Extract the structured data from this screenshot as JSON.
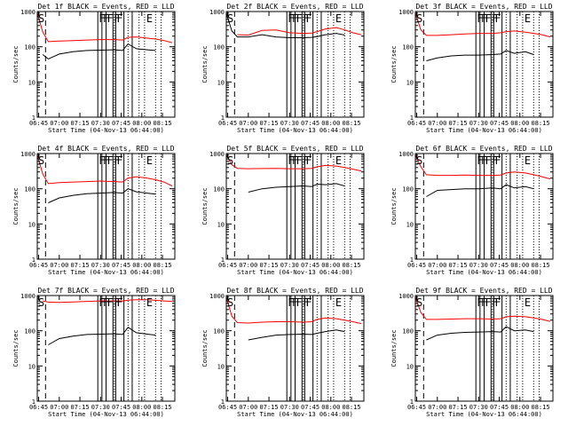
{
  "figure": {
    "panels": [
      {
        "title": "Det 1f BLACK = Events, RED = LLD",
        "start_marker": "S",
        "end_marker": "E",
        "flags": [
          "F",
          "F",
          "F",
          "F",
          "F"
        ],
        "xlabel": "Start Time (04-Nov-13 06:44:00)",
        "ylabel": "Counts/sec",
        "x_tick_labels": [
          "06:45",
          "07:00",
          "07:15",
          "07:30",
          "07:45",
          "08:00",
          "08:15"
        ],
        "y_tick_labels": [
          "1",
          "10",
          "100",
          "1000"
        ]
      },
      {
        "title": "Det 2f BLACK = Events, RED = LLD",
        "start_marker": "S",
        "end_marker": "E",
        "flags": [
          "F",
          "F",
          "F",
          "F",
          "F"
        ],
        "xlabel": "Start Time (04-Nov-13 06:44:00)",
        "ylabel": "Counts/sec",
        "x_tick_labels": [
          "06:45",
          "07:00",
          "07:15",
          "07:30",
          "07:45",
          "08:00",
          "08:15"
        ],
        "y_tick_labels": [
          "1",
          "10",
          "100",
          "1000"
        ]
      },
      {
        "title": "Det 3f BLACK = Events, RED = LLD",
        "start_marker": "S",
        "end_marker": "E",
        "flags": [
          "F",
          "F",
          "F",
          "F",
          "F"
        ],
        "xlabel": "Start Time (04-Nov-13 06:44:00)",
        "ylabel": "Counts/sec",
        "x_tick_labels": [
          "06:45",
          "07:00",
          "07:15",
          "07:30",
          "07:45",
          "08:00",
          "08:15"
        ],
        "y_tick_labels": [
          "1",
          "10",
          "100",
          "1000"
        ]
      },
      {
        "title": "Det 4f BLACK = Events, RED = LLD",
        "start_marker": "S",
        "end_marker": "E",
        "flags": [
          "F",
          "F",
          "F",
          "F",
          "F"
        ],
        "xlabel": "Start Time (04-Nov-13 06:44:00)",
        "ylabel": "Counts/sec",
        "x_tick_labels": [
          "06:45",
          "07:00",
          "07:15",
          "07:30",
          "07:45",
          "08:00",
          "08:15"
        ],
        "y_tick_labels": [
          "1",
          "10",
          "100",
          "1000"
        ]
      },
      {
        "title": "Det 5f BLACK = Events, RED = LLD",
        "start_marker": "S",
        "end_marker": "E",
        "flags": [
          "F",
          "F",
          "F",
          "F",
          "F"
        ],
        "xlabel": "Start Time (04-Nov-13 06:44:00)",
        "ylabel": "Counts/sec",
        "x_tick_labels": [
          "06:45",
          "07:00",
          "07:15",
          "07:30",
          "07:45",
          "08:00",
          "08:15"
        ],
        "y_tick_labels": [
          "1",
          "10",
          "100",
          "1000"
        ]
      },
      {
        "title": "Det 6f BLACK = Events, RED = LLD",
        "start_marker": "S",
        "end_marker": "E",
        "flags": [
          "F",
          "F",
          "F",
          "F",
          "F"
        ],
        "xlabel": "Start Time (04-Nov-13 06:44:00)",
        "ylabel": "Counts/sec",
        "x_tick_labels": [
          "06:45",
          "07:00",
          "07:15",
          "07:30",
          "07:45",
          "08:00",
          "08:15"
        ],
        "y_tick_labels": [
          "1",
          "10",
          "100",
          "1000"
        ]
      },
      {
        "title": "Det 7f BLACK = Events, RED = LLD",
        "start_marker": "S",
        "end_marker": "E",
        "flags": [
          "F",
          "F",
          "F",
          "F",
          "F"
        ],
        "xlabel": "Start Time (04-Nov-13 06:44:00)",
        "ylabel": "Counts/sec",
        "x_tick_labels": [
          "06:45",
          "07:00",
          "07:15",
          "07:30",
          "07:45",
          "08:00",
          "08:15"
        ],
        "y_tick_labels": [
          "1",
          "10",
          "100",
          "1000"
        ]
      },
      {
        "title": "Det 8f BLACK = Events, RED = LLD",
        "start_marker": "S",
        "end_marker": "E",
        "flags": [
          "F",
          "F",
          "F",
          "F",
          "F"
        ],
        "xlabel": "Start Time (04-Nov-13 06:44:00)",
        "ylabel": "Counts/sec",
        "x_tick_labels": [
          "06:45",
          "07:00",
          "07:15",
          "07:30",
          "07:45",
          "08:00",
          "08:15"
        ],
        "y_tick_labels": [
          "1",
          "10",
          "100",
          "1000"
        ]
      },
      {
        "title": "Det 9f BLACK = Events, RED = LLD",
        "start_marker": "S",
        "end_marker": "E",
        "flags": [
          "F",
          "F",
          "F",
          "F",
          "F"
        ],
        "xlabel": "Start Time (04-Nov-13 06:44:00)",
        "ylabel": "Counts/sec",
        "x_tick_labels": [
          "06:45",
          "07:00",
          "07:15",
          "07:30",
          "07:45",
          "08:00",
          "08:15"
        ],
        "y_tick_labels": [
          "1",
          "10",
          "100",
          "1000"
        ]
      }
    ]
  },
  "chart_data": [
    {
      "type": "line",
      "title": "Det 1f BLACK = Events, RED = LLD",
      "xlabel": "Start Time (04-Nov-13 06:44:00)",
      "ylabel": "Counts/sec",
      "yscale": "log",
      "xlim": [
        "06:44",
        "08:24"
      ],
      "ylim": [
        1,
        1000
      ],
      "x": [
        "06:44",
        "06:48",
        "06:52",
        "07:00",
        "07:10",
        "07:20",
        "07:30",
        "07:40",
        "07:46",
        "07:50",
        "07:56",
        "08:04",
        "08:10",
        "08:16",
        "08:22"
      ],
      "series": [
        {
          "values": [
            null,
            60,
            45,
            62,
            72,
            78,
            80,
            82,
            78,
            120,
            88,
            82,
            78,
            null,
            null
          ],
          "color": "#000000"
        },
        {
          "values": [
            900,
            260,
            140,
            145,
            150,
            155,
            160,
            160,
            155,
            185,
            190,
            175,
            165,
            150,
            130
          ],
          "color": "#ff0000"
        }
      ]
    },
    {
      "type": "line",
      "title": "Det 2f BLACK = Events, RED = LLD",
      "xlabel": "Start Time (04-Nov-13 06:44:00)",
      "ylabel": "Counts/sec",
      "yscale": "log",
      "xlim": [
        "06:44",
        "08:24"
      ],
      "ylim": [
        1,
        1000
      ],
      "x": [
        "06:44",
        "06:48",
        "06:52",
        "07:00",
        "07:10",
        "07:20",
        "07:30",
        "07:40",
        "07:46",
        "07:50",
        "07:56",
        "08:04",
        "08:10",
        "08:16",
        "08:22"
      ],
      "series": [
        {
          "values": [
            900,
            280,
            190,
            190,
            220,
            190,
            180,
            180,
            185,
            195,
            220,
            240,
            215,
            null,
            null
          ],
          "color": "#000000"
        },
        {
          "values": [
            null,
            null,
            220,
            215,
            290,
            300,
            250,
            240,
            245,
            270,
            320,
            350,
            300,
            250,
            220
          ],
          "color": "#ff0000"
        }
      ]
    },
    {
      "type": "line",
      "title": "Det 3f BLACK = Events, RED = LLD",
      "xlabel": "Start Time (04-Nov-13 06:44:00)",
      "ylabel": "Counts/sec",
      "yscale": "log",
      "xlim": [
        "06:44",
        "08:24"
      ],
      "ylim": [
        1,
        1000
      ],
      "x": [
        "06:44",
        "06:48",
        "06:52",
        "07:00",
        "07:10",
        "07:20",
        "07:30",
        "07:40",
        "07:46",
        "07:50",
        "07:56",
        "08:04",
        "08:10",
        "08:16",
        "08:22"
      ],
      "series": [
        {
          "values": [
            null,
            null,
            40,
            48,
            55,
            58,
            58,
            60,
            62,
            78,
            65,
            72,
            60,
            null,
            null
          ],
          "color": "#000000"
        },
        {
          "values": [
            900,
            300,
            210,
            210,
            220,
            230,
            240,
            240,
            250,
            270,
            280,
            260,
            240,
            220,
            190
          ],
          "color": "#ff0000"
        }
      ]
    },
    {
      "type": "line",
      "title": "Det 4f BLACK = Events, RED = LLD",
      "xlabel": "Start Time (04-Nov-13 06:44:00)",
      "ylabel": "Counts/sec",
      "yscale": "log",
      "xlim": [
        "06:44",
        "08:24"
      ],
      "ylim": [
        1,
        1000
      ],
      "x": [
        "06:44",
        "06:48",
        "06:52",
        "07:00",
        "07:10",
        "07:20",
        "07:30",
        "07:40",
        "07:46",
        "07:50",
        "07:56",
        "08:04",
        "08:10",
        "08:16",
        "08:22"
      ],
      "series": [
        {
          "values": [
            null,
            null,
            40,
            55,
            65,
            72,
            75,
            78,
            75,
            100,
            82,
            75,
            70,
            null,
            null
          ],
          "color": "#000000"
        },
        {
          "values": [
            900,
            260,
            140,
            150,
            155,
            160,
            165,
            160,
            155,
            200,
            220,
            200,
            180,
            155,
            120
          ],
          "color": "#ff0000"
        }
      ]
    },
    {
      "type": "line",
      "title": "Det 5f BLACK = Events, RED = LLD",
      "xlabel": "Start Time (04-Nov-13 06:44:00)",
      "ylabel": "Counts/sec",
      "yscale": "log",
      "xlim": [
        "06:44",
        "08:24"
      ],
      "ylim": [
        1,
        1000
      ],
      "x": [
        "06:44",
        "06:48",
        "06:52",
        "07:00",
        "07:10",
        "07:20",
        "07:30",
        "07:40",
        "07:46",
        "07:50",
        "07:56",
        "08:04",
        "08:10",
        "08:16",
        "08:22"
      ],
      "series": [
        {
          "values": [
            null,
            null,
            null,
            80,
            100,
            110,
            115,
            120,
            115,
            135,
            130,
            140,
            120,
            null,
            null
          ],
          "color": "#000000"
        },
        {
          "values": [
            900,
            480,
            380,
            370,
            375,
            380,
            370,
            370,
            380,
            420,
            460,
            440,
            400,
            360,
            320
          ],
          "color": "#ff0000"
        }
      ]
    },
    {
      "type": "line",
      "title": "Det 6f BLACK = Events, RED = LLD",
      "xlabel": "Start Time (04-Nov-13 06:44:00)",
      "ylabel": "Counts/sec",
      "yscale": "log",
      "xlim": [
        "06:44",
        "08:24"
      ],
      "ylim": [
        1,
        1000
      ],
      "x": [
        "06:44",
        "06:48",
        "06:52",
        "07:00",
        "07:10",
        "07:20",
        "07:30",
        "07:40",
        "07:46",
        "07:50",
        "07:56",
        "08:04",
        "08:10",
        "08:16",
        "08:22"
      ],
      "series": [
        {
          "values": [
            null,
            null,
            60,
            90,
            95,
            100,
            100,
            105,
            100,
            130,
            105,
            115,
            100,
            null,
            null
          ],
          "color": "#000000"
        },
        {
          "values": [
            900,
            420,
            250,
            240,
            240,
            245,
            240,
            240,
            245,
            280,
            300,
            280,
            250,
            220,
            190
          ],
          "color": "#ff0000"
        }
      ]
    },
    {
      "type": "line",
      "title": "Det 7f BLACK = Events, RED = LLD",
      "xlabel": "Start Time (04-Nov-13 06:44:00)",
      "ylabel": "Counts/sec",
      "yscale": "log",
      "xlim": [
        "06:44",
        "08:24"
      ],
      "ylim": [
        1,
        1000
      ],
      "x": [
        "06:44",
        "06:48",
        "06:52",
        "07:00",
        "07:10",
        "07:20",
        "07:30",
        "07:40",
        "07:46",
        "07:50",
        "07:56",
        "08:04",
        "08:10",
        "08:16",
        "08:22"
      ],
      "series": [
        {
          "values": [
            null,
            null,
            40,
            60,
            70,
            78,
            80,
            82,
            78,
            125,
            88,
            80,
            75,
            null,
            null
          ],
          "color": "#000000"
        },
        {
          "values": [
            null,
            700,
            650,
            640,
            660,
            680,
            700,
            700,
            700,
            740,
            760,
            760,
            730,
            700,
            680
          ],
          "color": "#ff0000"
        }
      ]
    },
    {
      "type": "line",
      "title": "Det 8f BLACK = Events, RED = LLD",
      "xlabel": "Start Time (04-Nov-13 06:44:00)",
      "ylabel": "Counts/sec",
      "yscale": "log",
      "xlim": [
        "06:44",
        "08:24"
      ],
      "ylim": [
        1,
        1000
      ],
      "x": [
        "06:44",
        "06:48",
        "06:52",
        "07:00",
        "07:10",
        "07:20",
        "07:30",
        "07:40",
        "07:46",
        "07:50",
        "07:56",
        "08:04",
        "08:10",
        "08:16",
        "08:22"
      ],
      "series": [
        {
          "values": [
            null,
            null,
            null,
            55,
            65,
            75,
            78,
            80,
            78,
            85,
            95,
            105,
            95,
            null,
            null
          ],
          "color": "#000000"
        },
        {
          "values": [
            900,
            260,
            170,
            165,
            175,
            180,
            180,
            175,
            180,
            210,
            230,
            220,
            200,
            180,
            160
          ],
          "color": "#ff0000"
        }
      ]
    },
    {
      "type": "line",
      "title": "Det 9f BLACK = Events, RED = LLD",
      "xlabel": "Start Time (04-Nov-13 06:44:00)",
      "ylabel": "Counts/sec",
      "yscale": "log",
      "xlim": [
        "06:44",
        "08:24"
      ],
      "ylim": [
        1,
        1000
      ],
      "x": [
        "06:44",
        "06:48",
        "06:52",
        "07:00",
        "07:10",
        "07:20",
        "07:30",
        "07:40",
        "07:46",
        "07:50",
        "07:56",
        "08:04",
        "08:10",
        "08:16",
        "08:22"
      ],
      "series": [
        {
          "values": [
            null,
            null,
            55,
            75,
            85,
            90,
            92,
            95,
            92,
            130,
            100,
            105,
            95,
            null,
            null
          ],
          "color": "#000000"
        },
        {
          "values": [
            900,
            330,
            210,
            210,
            215,
            220,
            220,
            215,
            220,
            250,
            260,
            250,
            230,
            210,
            185
          ],
          "color": "#ff0000"
        }
      ]
    }
  ],
  "markers": {
    "dashed_line_time": "06:50",
    "solid_line_times": [
      "07:28",
      "07:31",
      "07:34",
      "07:39",
      "07:41",
      "07:47",
      "07:53"
    ],
    "dotted_line_times": [
      "07:40",
      "07:50",
      "07:58",
      "08:02",
      "08:10",
      "08:14"
    ]
  }
}
